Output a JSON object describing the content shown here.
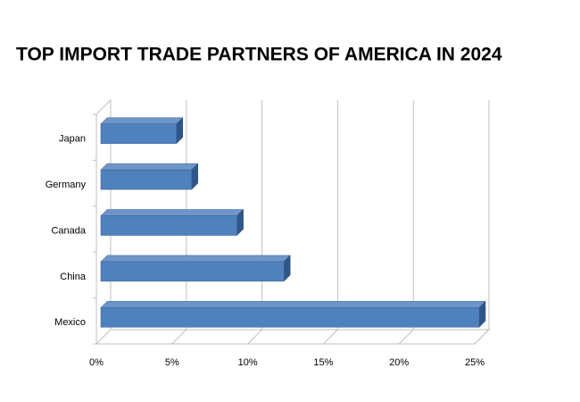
{
  "chart_data": {
    "type": "bar3d",
    "title": "TOP IMPORT TRADE PARTNERS OF AMERICA IN 2024",
    "categories": [
      "Mexico",
      "China",
      "Canada",
      "Germany",
      "Japan"
    ],
    "values": [
      25,
      12.1,
      9,
      6,
      5
    ],
    "color": "#4f81bd",
    "xlim": [
      0,
      25
    ],
    "xticks": [
      {
        "value": 0,
        "label": "0%"
      },
      {
        "value": 5,
        "label": "5%"
      },
      {
        "value": 10,
        "label": "10%"
      },
      {
        "value": 15,
        "label": "15%"
      },
      {
        "value": 20,
        "label": "20%"
      },
      {
        "value": 25,
        "label": "25%"
      }
    ],
    "grid": true
  }
}
